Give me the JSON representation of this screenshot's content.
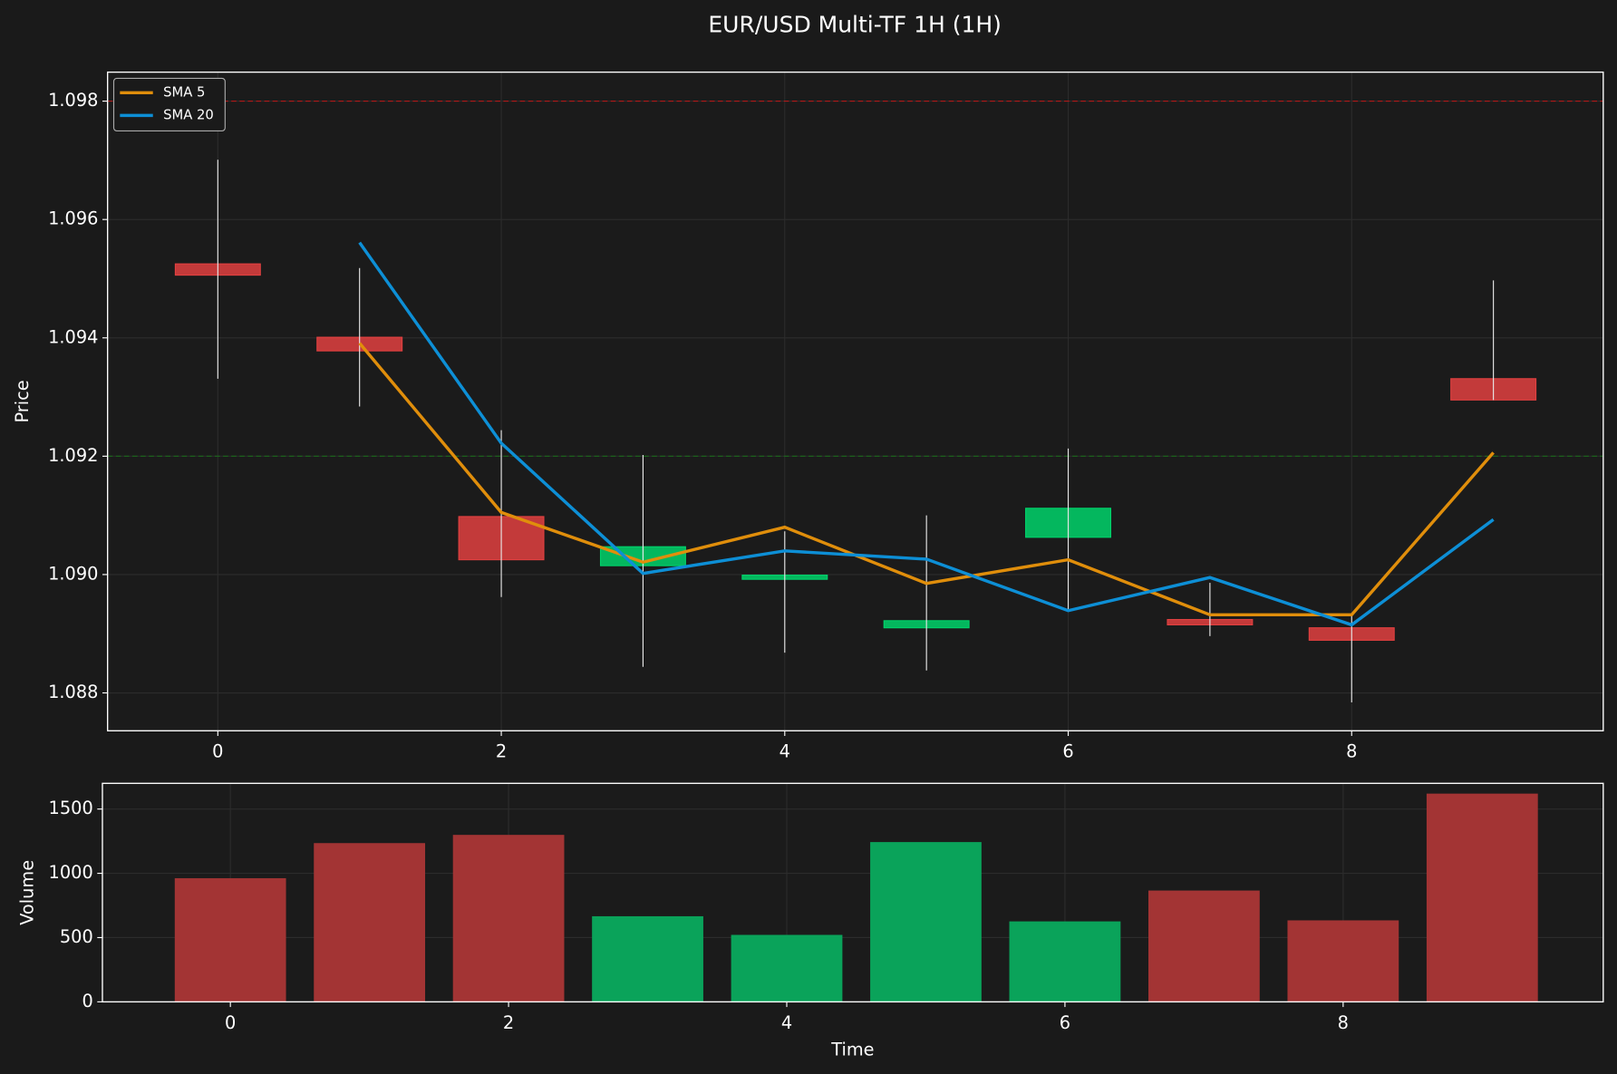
{
  "chart_data": [
    {
      "type": "candlestick",
      "title": "EUR/USD Multi-TF 1H (1H)",
      "ylabel": "Price",
      "x": [
        0,
        1,
        2,
        3,
        4,
        5,
        6,
        7,
        8,
        9
      ],
      "open": [
        1.09525,
        1.09401,
        1.09098,
        1.09015,
        1.08992,
        1.0891,
        1.09063,
        1.08924,
        1.0891,
        1.09331
      ],
      "high": [
        1.09701,
        1.09518,
        1.09244,
        1.09202,
        1.09073,
        1.091,
        1.09213,
        1.08986,
        1.08932,
        1.09497
      ],
      "low": [
        1.09331,
        1.09284,
        1.08962,
        1.08844,
        1.08868,
        1.08838,
        1.08939,
        1.08896,
        1.08784,
        1.09295
      ],
      "close": [
        1.09506,
        1.09378,
        1.09025,
        1.09047,
        1.08999,
        1.08922,
        1.09112,
        1.08915,
        1.08889,
        1.09295
      ],
      "up_color": "#00d26a",
      "down_color": "#e04040",
      "series": [
        {
          "name": "SMA 5",
          "color": "#e08e0b",
          "values": [
            null,
            1.09391,
            1.09105,
            1.09021,
            1.0908,
            1.08985,
            1.09025,
            1.08932,
            1.08932,
            1.09206
          ]
        },
        {
          "name": "SMA 20",
          "color": "#0d8fd6",
          "values": [
            null,
            1.09561,
            1.09222,
            1.09002,
            1.0904,
            1.09026,
            1.08939,
            1.08995,
            1.08915,
            1.09093
          ]
        }
      ],
      "hlines": [
        {
          "value": 1.098,
          "color": "#b01818"
        },
        {
          "value": 1.092,
          "color": "#1a6a1a"
        }
      ],
      "xlim": [
        -0.778,
        9.775
      ],
      "xticks": [
        0,
        2,
        4,
        6,
        8
      ],
      "ylim": [
        1.08736,
        1.09849
      ],
      "yticks": [
        1.088,
        {
          "value": 1.09,
          "label": "1.090"
        },
        1.092,
        1.094,
        1.096,
        1.098
      ],
      "grid": true,
      "legend": "upper left"
    },
    {
      "type": "bar",
      "xlabel": "Time",
      "ylabel": "Volume",
      "x": [
        0,
        1,
        2,
        3,
        4,
        5,
        6,
        7,
        8,
        9
      ],
      "values": [
        962,
        1235,
        1299,
        666,
        521,
        1243,
        626,
        866,
        634,
        1620
      ],
      "colors": [
        "#a33434",
        "#a33434",
        "#a33434",
        "#0aa35a",
        "#0aa35a",
        "#0aa35a",
        "#0aa35a",
        "#a33434",
        "#a33434",
        "#a33434"
      ],
      "xlim": [
        -0.92,
        9.87
      ],
      "xticks": [
        0,
        2,
        4,
        6,
        8
      ],
      "ylim": [
        0,
        1700
      ],
      "yticks": [
        0,
        500,
        1000,
        1500
      ],
      "grid": true
    }
  ]
}
